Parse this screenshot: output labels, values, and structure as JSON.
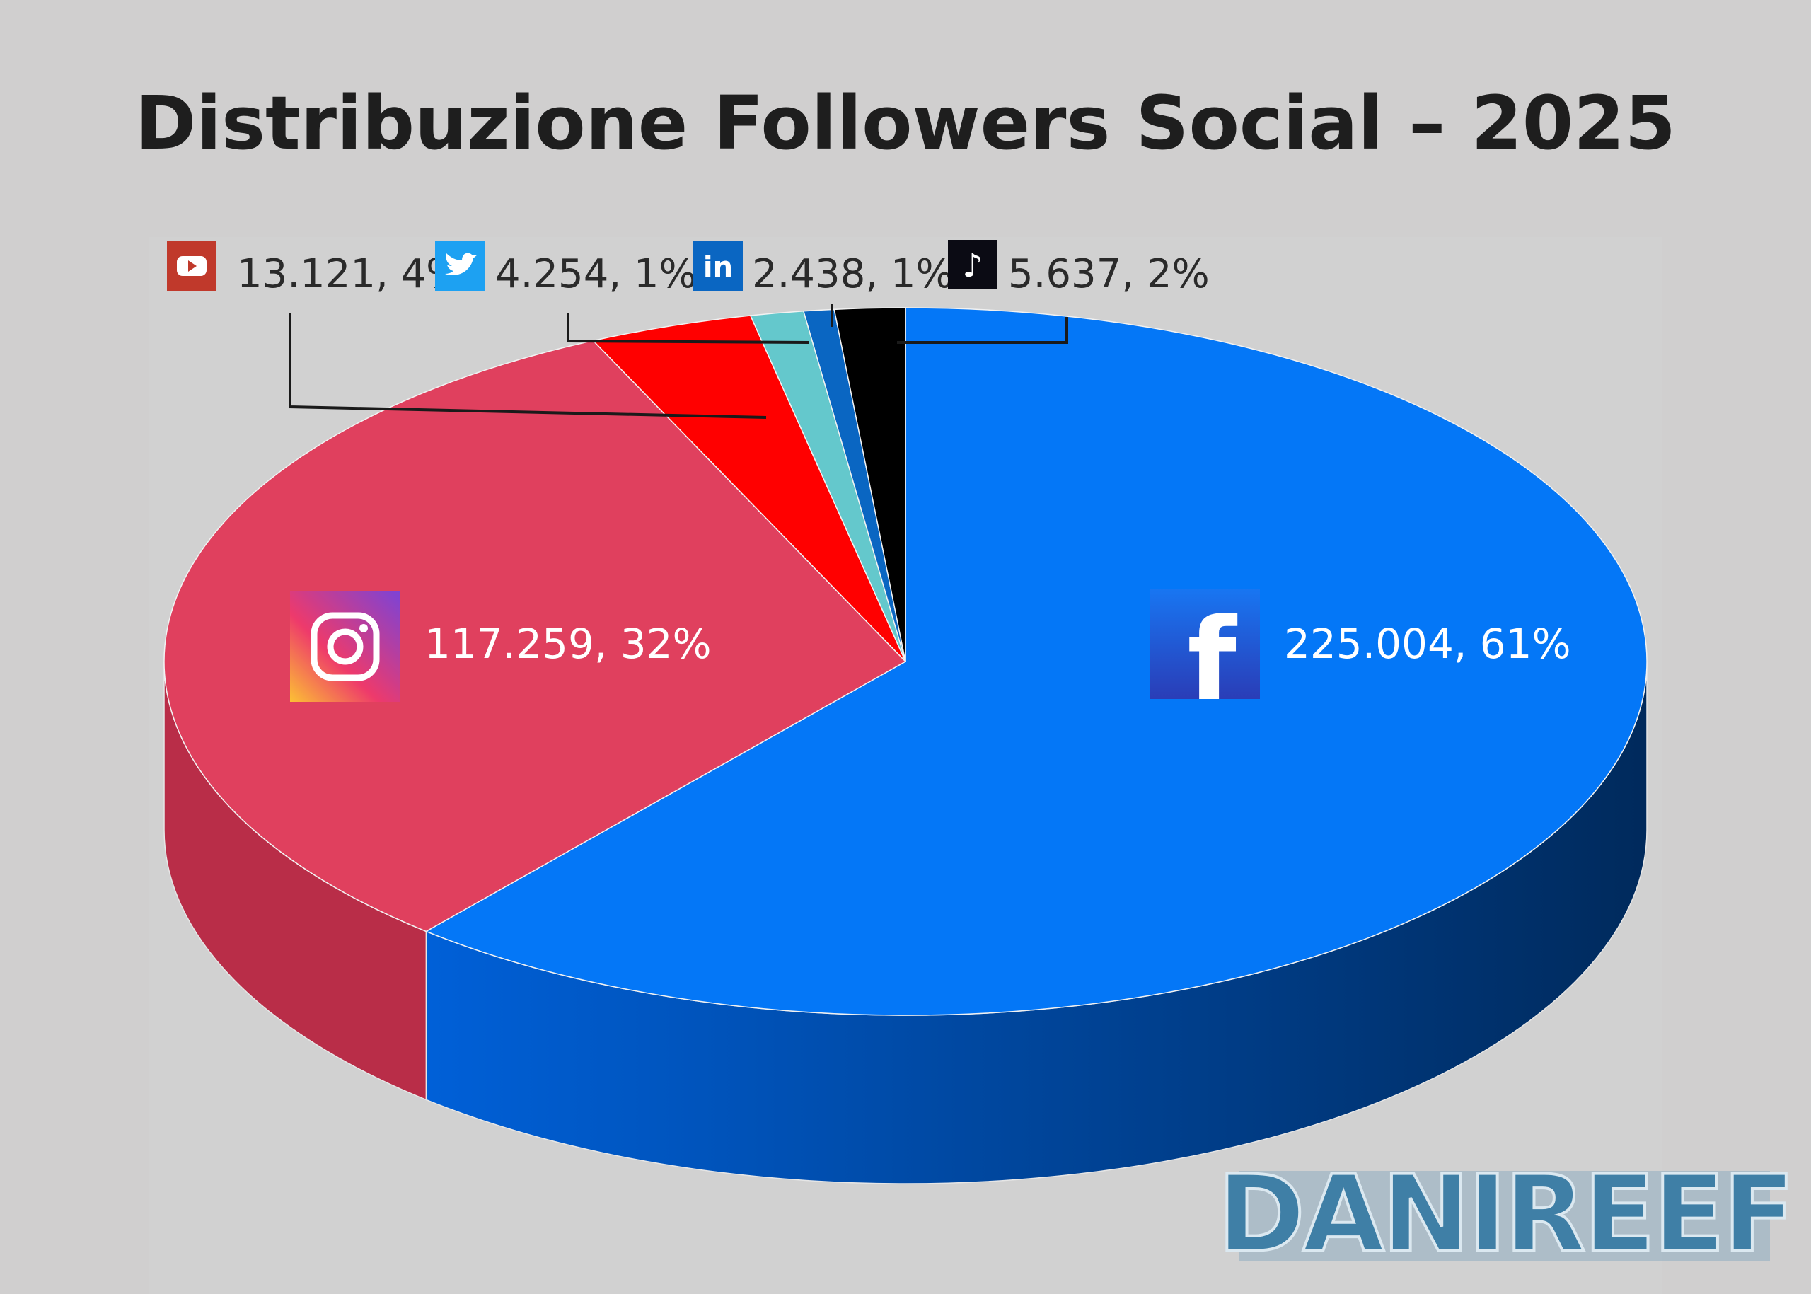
{
  "chart_data": {
    "type": "pie",
    "title": "Distribuzione Followers Social – 2025",
    "slices": [
      {
        "name": "Facebook",
        "icon": "facebook-icon",
        "value": 225004,
        "label": "225.004, 61%",
        "color": "#0477f7",
        "side_color": "#0047a6"
      },
      {
        "name": "Instagram",
        "icon": "instagram-icon",
        "value": 117259,
        "label": "117.259, 32%",
        "color": "#e0405e",
        "side_color": "#b92d48"
      },
      {
        "name": "YouTube",
        "icon": "youtube-icon",
        "value": 13121,
        "label": "13.121, 4%",
        "color": "#ff0000",
        "side_color": "#b30000"
      },
      {
        "name": "Twitter",
        "icon": "twitter-icon",
        "value": 4254,
        "label": "4.254, 1%",
        "color": "#64c8cc",
        "side_color": "#3e9a9e"
      },
      {
        "name": "LinkedIn",
        "icon": "linkedin-icon",
        "value": 2438,
        "label": "2.438, 1%",
        "color": "#0a66c2",
        "side_color": "#064585"
      },
      {
        "name": "TikTok",
        "icon": "tiktok-icon",
        "value": 5637,
        "label": "5.637, 2%",
        "color": "#000000",
        "side_color": "#000000"
      }
    ]
  },
  "logo": {
    "text": "DANIREEF"
  },
  "icons": {
    "twitter_glyph": "🐦",
    "linkedin_glyph": "in",
    "tiktok_glyph": "♪",
    "facebook_glyph": "f"
  }
}
